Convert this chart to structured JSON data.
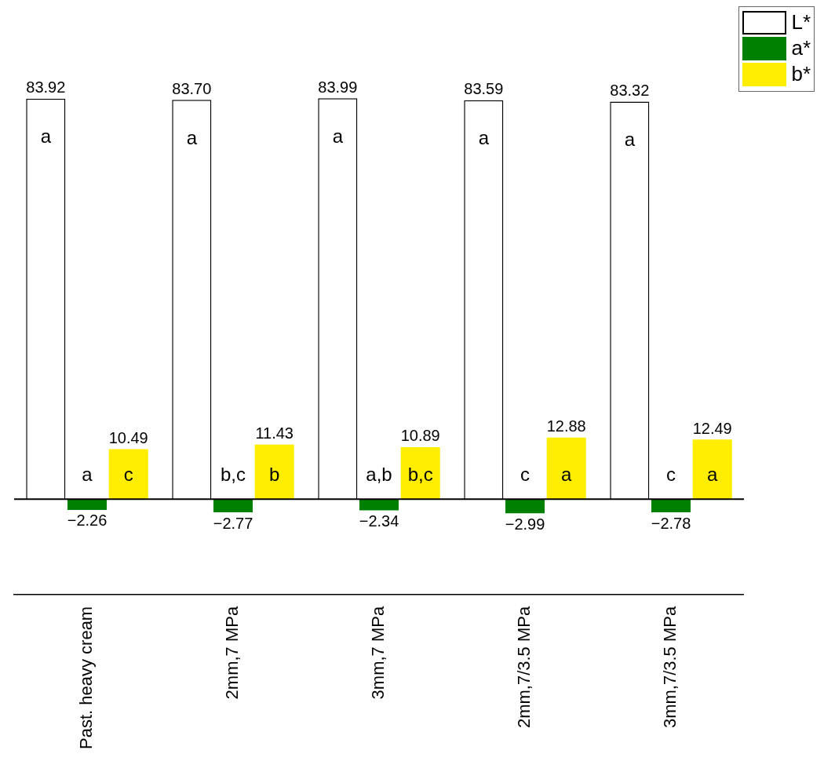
{
  "chart_data": {
    "type": "bar",
    "categories": [
      "Past. heavy cream",
      "2mm,7 MPa",
      "3mm,7 MPa",
      "2mm,7/3.5 MPa",
      "3mm,7/3.5 MPa"
    ],
    "series": [
      {
        "name": "L*",
        "color": "#ffffff",
        "values": [
          83.92,
          83.7,
          83.99,
          83.59,
          83.32
        ],
        "value_labels": [
          "83.92",
          "83.70",
          "83.99",
          "83.59",
          "83.32"
        ]
      },
      {
        "name": "a*",
        "color": "#008000",
        "values": [
          -2.26,
          -2.77,
          -2.34,
          -2.99,
          -2.78
        ],
        "value_labels": [
          "−2.26",
          "−2.77",
          "−2.34",
          "−2.99",
          "−2.78"
        ]
      },
      {
        "name": "b*",
        "color": "#ffee00",
        "values": [
          10.49,
          11.43,
          10.89,
          12.88,
          12.49
        ],
        "value_labels": [
          "10.49",
          "11.43",
          "10.89",
          "12.88",
          "12.49"
        ]
      }
    ],
    "tick_labels": "x",
    "grid": false,
    "legend": "top right",
    "ref_lines": [
      {
        "axis": "y",
        "value": 0,
        "color": "#000000"
      }
    ],
    "annotations": [
      "a",
      "a",
      "c",
      "a",
      "b,c",
      "b",
      "a",
      "a,b",
      "b,c",
      "a",
      "c",
      "a",
      "a",
      "c",
      "a"
    ]
  }
}
